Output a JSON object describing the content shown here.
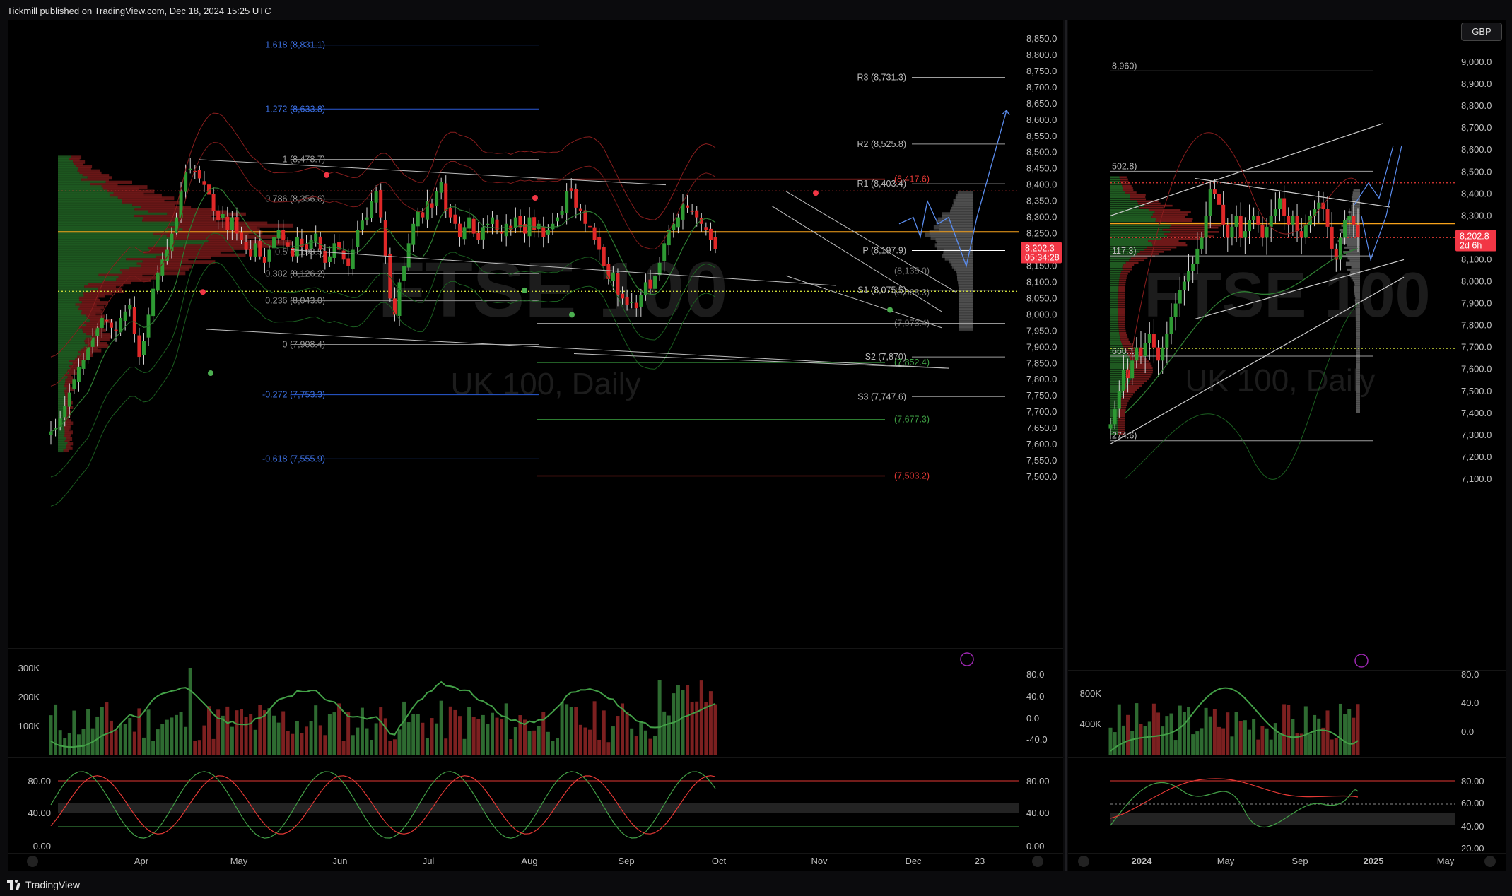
{
  "header": {
    "publisher_line": "Tickmill published on TradingView.com, Dec 18, 2024 15:25 UTC"
  },
  "footer": {
    "brand": "TradingView"
  },
  "currency": "GBP",
  "colors": {
    "up": "#2e7d32",
    "down": "#c62828",
    "fib_blue": "#2a5bd7",
    "pivot_gray": "#9e9e9e",
    "poc": "#f7a21b",
    "price_tag": "#f23645"
  },
  "left_chart": {
    "watermark_symbol": "FTSE 100",
    "watermark_sub": "UK 100, Daily",
    "price_ticks": [
      "8,850.0",
      "8,800.0",
      "8,750.0",
      "8,700.0",
      "8,650.0",
      "8,600.0",
      "8,550.0",
      "8,500.0",
      "8,450.0",
      "8,400.0",
      "8,350.0",
      "8,300.0",
      "8,250.0",
      "8,200.0",
      "8,150.0",
      "8,100.0",
      "8,050.0",
      "8,000.0",
      "7,950.0",
      "7,900.0",
      "7,850.0",
      "7,800.0",
      "7,750.0",
      "7,700.0",
      "7,650.0",
      "7,600.0",
      "7,550.0",
      "7,500.0"
    ],
    "last_price": "8,202.3",
    "countdown": "05:34:28",
    "fib_labels": [
      "1.618 (8,831.1)",
      "1.272 (8,633.8)",
      "1 (8,478.7)",
      "0.786 (8,356.6)",
      "0.5 (8,193.5)",
      "0.382 (8,126.2)",
      "0.236 (8,043.0)",
      "0 (7,908.4)",
      "-0.272 (7,753.3)",
      "-0.618 (7,555.9)"
    ],
    "pivot_labels": [
      "R3 (8,731.3)",
      "R2 (8,525.8)",
      "R1 (8,403.4)",
      "P (8,197.9)",
      "S1 (8,075.5)",
      "S2 (7,870)",
      "S3 (7,747.6)"
    ],
    "level_labels": [
      "(8,417.6)",
      "(8,135.0)",
      "(8,068.3)",
      "(7,973.4)",
      "(7,852.4)",
      "(7,677.3)",
      "(7,503.2)"
    ],
    "volume_ticks": [
      "300K",
      "200K",
      "100K"
    ],
    "osc1_ticks": [
      "80.0",
      "40.0",
      "0.0",
      "-40.0"
    ],
    "stoch_ticks_left": [
      "80.00",
      "40.00",
      "0.00"
    ],
    "stoch_ticks_right": [
      "80.00",
      "40.00",
      "0.00"
    ],
    "time_ticks": [
      "Apr",
      "May",
      "Jun",
      "Jul",
      "Aug",
      "Sep",
      "Oct",
      "Nov",
      "Dec",
      "23"
    ]
  },
  "right_chart": {
    "watermark_symbol": "FTSE 100",
    "watermark_sub": "UK 100, Daily",
    "price_ticks": [
      "9,000.0",
      "8,900.0",
      "8,800.0",
      "8,700.0",
      "8,600.0",
      "8,500.0",
      "8,400.0",
      "8,300.0",
      "8,200.0",
      "8,100.0",
      "8,000.0",
      "7,900.0",
      "7,800.0",
      "7,700.0",
      "7,600.0",
      "7,500.0",
      "7,400.0",
      "7,300.0",
      "7,200.0",
      "7,100.0"
    ],
    "last_price": "8,202.8",
    "countdown": "2d 6h",
    "level_labels": [
      "8,960)",
      "502.8)",
      "117.3)",
      "660.1)",
      "274.6)"
    ],
    "volume_ticks": [
      "800K",
      "400K"
    ],
    "osc1_ticks": [
      "80.0",
      "40.0",
      "0.0"
    ],
    "stoch_ticks": [
      "80.00",
      "60.00",
      "40.00",
      "20.00"
    ],
    "time_ticks": [
      "2024",
      "May",
      "Sep",
      "2025",
      "May"
    ]
  }
}
